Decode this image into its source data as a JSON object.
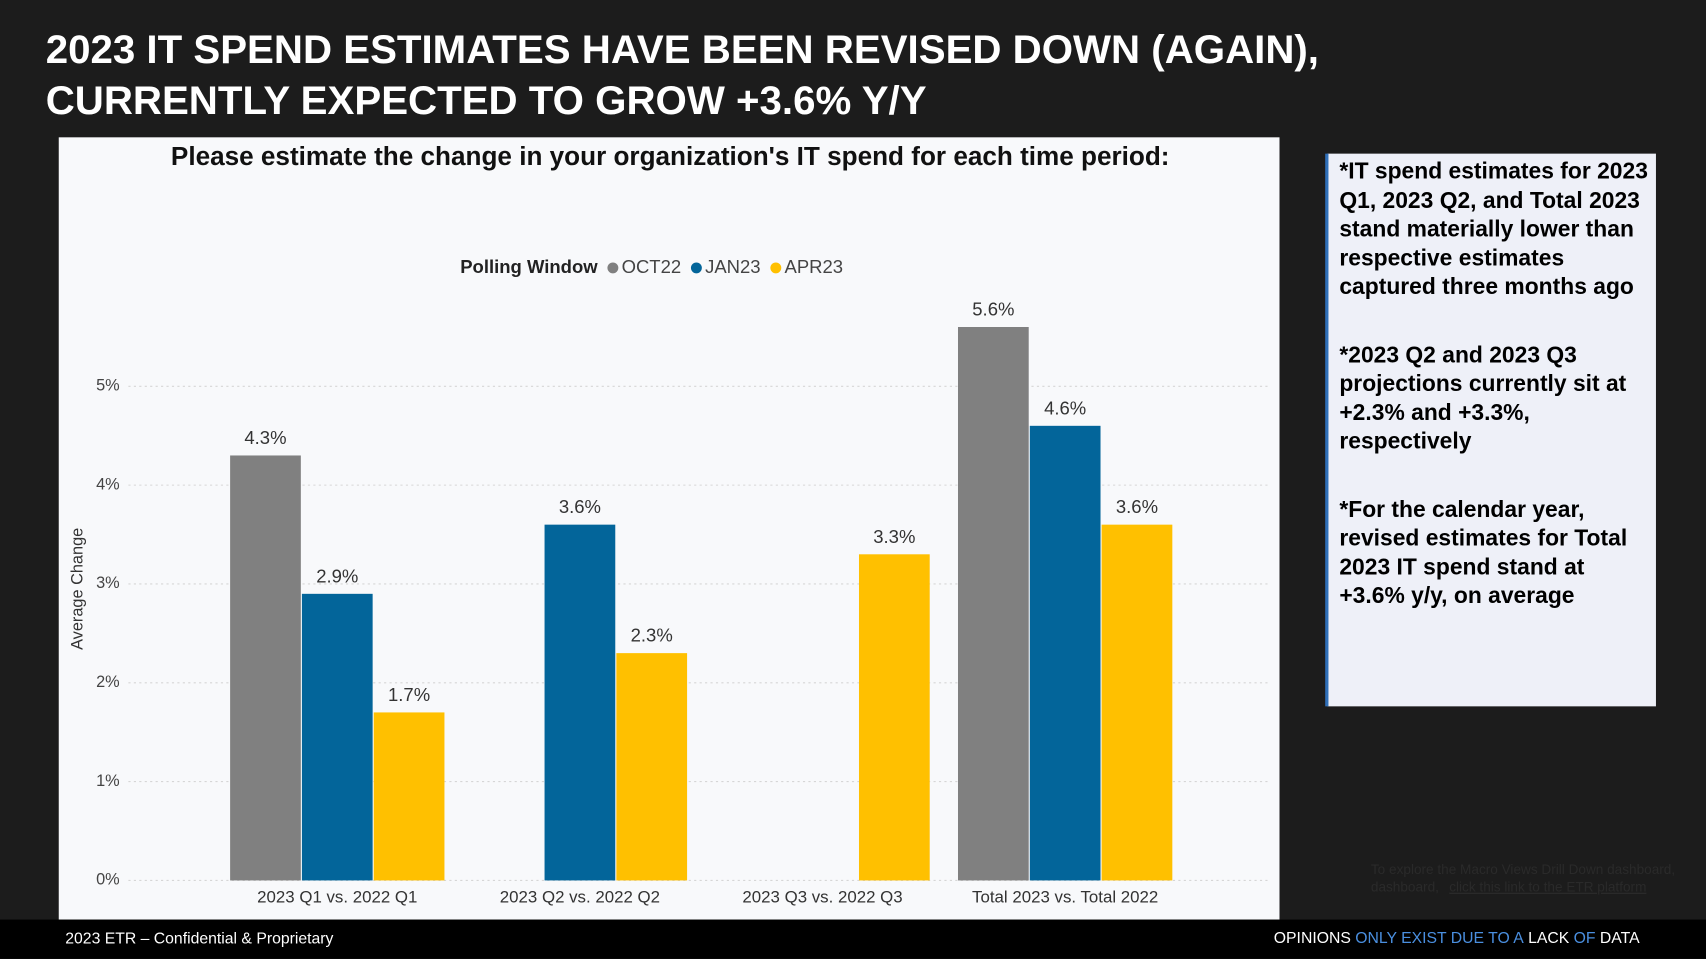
{
  "slide": {
    "title_lines": [
      "2023 IT SPEND ESTIMATES HAVE BEEN REVISED DOWN (AGAIN),",
      "CURRENTLY EXPECTED TO GROW +3.6% Y/Y"
    ],
    "notes": [
      "*IT spend estimates for 2023 Q1, 2023 Q2, and Total 2023 stand materially lower than respective estimates captured three months ago",
      "*2023 Q2 and 2023 Q3 projections currently sit at +2.3% and +3.3%, respectively",
      "*For the calendar year, revised estimates for Total 2023 IT spend stand at +3.6% y/y, on average"
    ],
    "link_note": "To explore the Macro Views Drill Down dashboard,",
    "link_text": "click this link to the ETR platform",
    "footer": "2023 ETR – Confidential & Proprietary",
    "tagline": [
      {
        "text": "OPINIONS",
        "color": "#ffffff"
      },
      {
        "text": "ONLY EXIST DUE TO A",
        "color": "#4a8fe0"
      },
      {
        "text": "LACK",
        "color": "#ffffff"
      },
      {
        "text": "OF",
        "color": "#4a8fe0"
      },
      {
        "text": "DATA",
        "color": "#ffffff"
      }
    ]
  },
  "chart_data": {
    "type": "bar",
    "title": "Please estimate the change in your organization's IT spend for each time period:",
    "legend_title": "Polling Window",
    "y_label": "Average Change",
    "categories": [
      "2023 Q1 vs. 2022 Q1",
      "2023 Q2 vs. 2022 Q2",
      "2023 Q3 vs. 2022 Q3",
      "Total 2023 vs. Total 2022"
    ],
    "series": [
      {
        "name": "OCT22",
        "color": "#808080",
        "values": [
          4.3,
          null,
          null,
          5.6
        ],
        "value_labels": [
          "4.3%",
          null,
          null,
          "5.6%"
        ]
      },
      {
        "name": "JAN23",
        "color": "#03659a",
        "values": [
          2.9,
          3.6,
          null,
          4.6
        ],
        "value_labels": [
          "2.9%",
          "3.6%",
          null,
          "4.6%"
        ]
      },
      {
        "name": "APR23",
        "color": "#ffc000",
        "values": [
          1.7,
          2.3,
          3.3,
          3.6
        ],
        "value_labels": [
          "1.7%",
          "2.3%",
          "3.3%",
          "3.6%"
        ]
      }
    ],
    "ylim": [
      0,
      6
    ],
    "yticks": [
      {
        "value": 0,
        "label": "0%"
      },
      {
        "value": 1,
        "label": "1%"
      },
      {
        "value": 2,
        "label": "2%"
      },
      {
        "value": 3,
        "label": "3%"
      },
      {
        "value": 4,
        "label": "4%"
      },
      {
        "value": 5,
        "label": "5%"
      }
    ],
    "grid": true
  }
}
